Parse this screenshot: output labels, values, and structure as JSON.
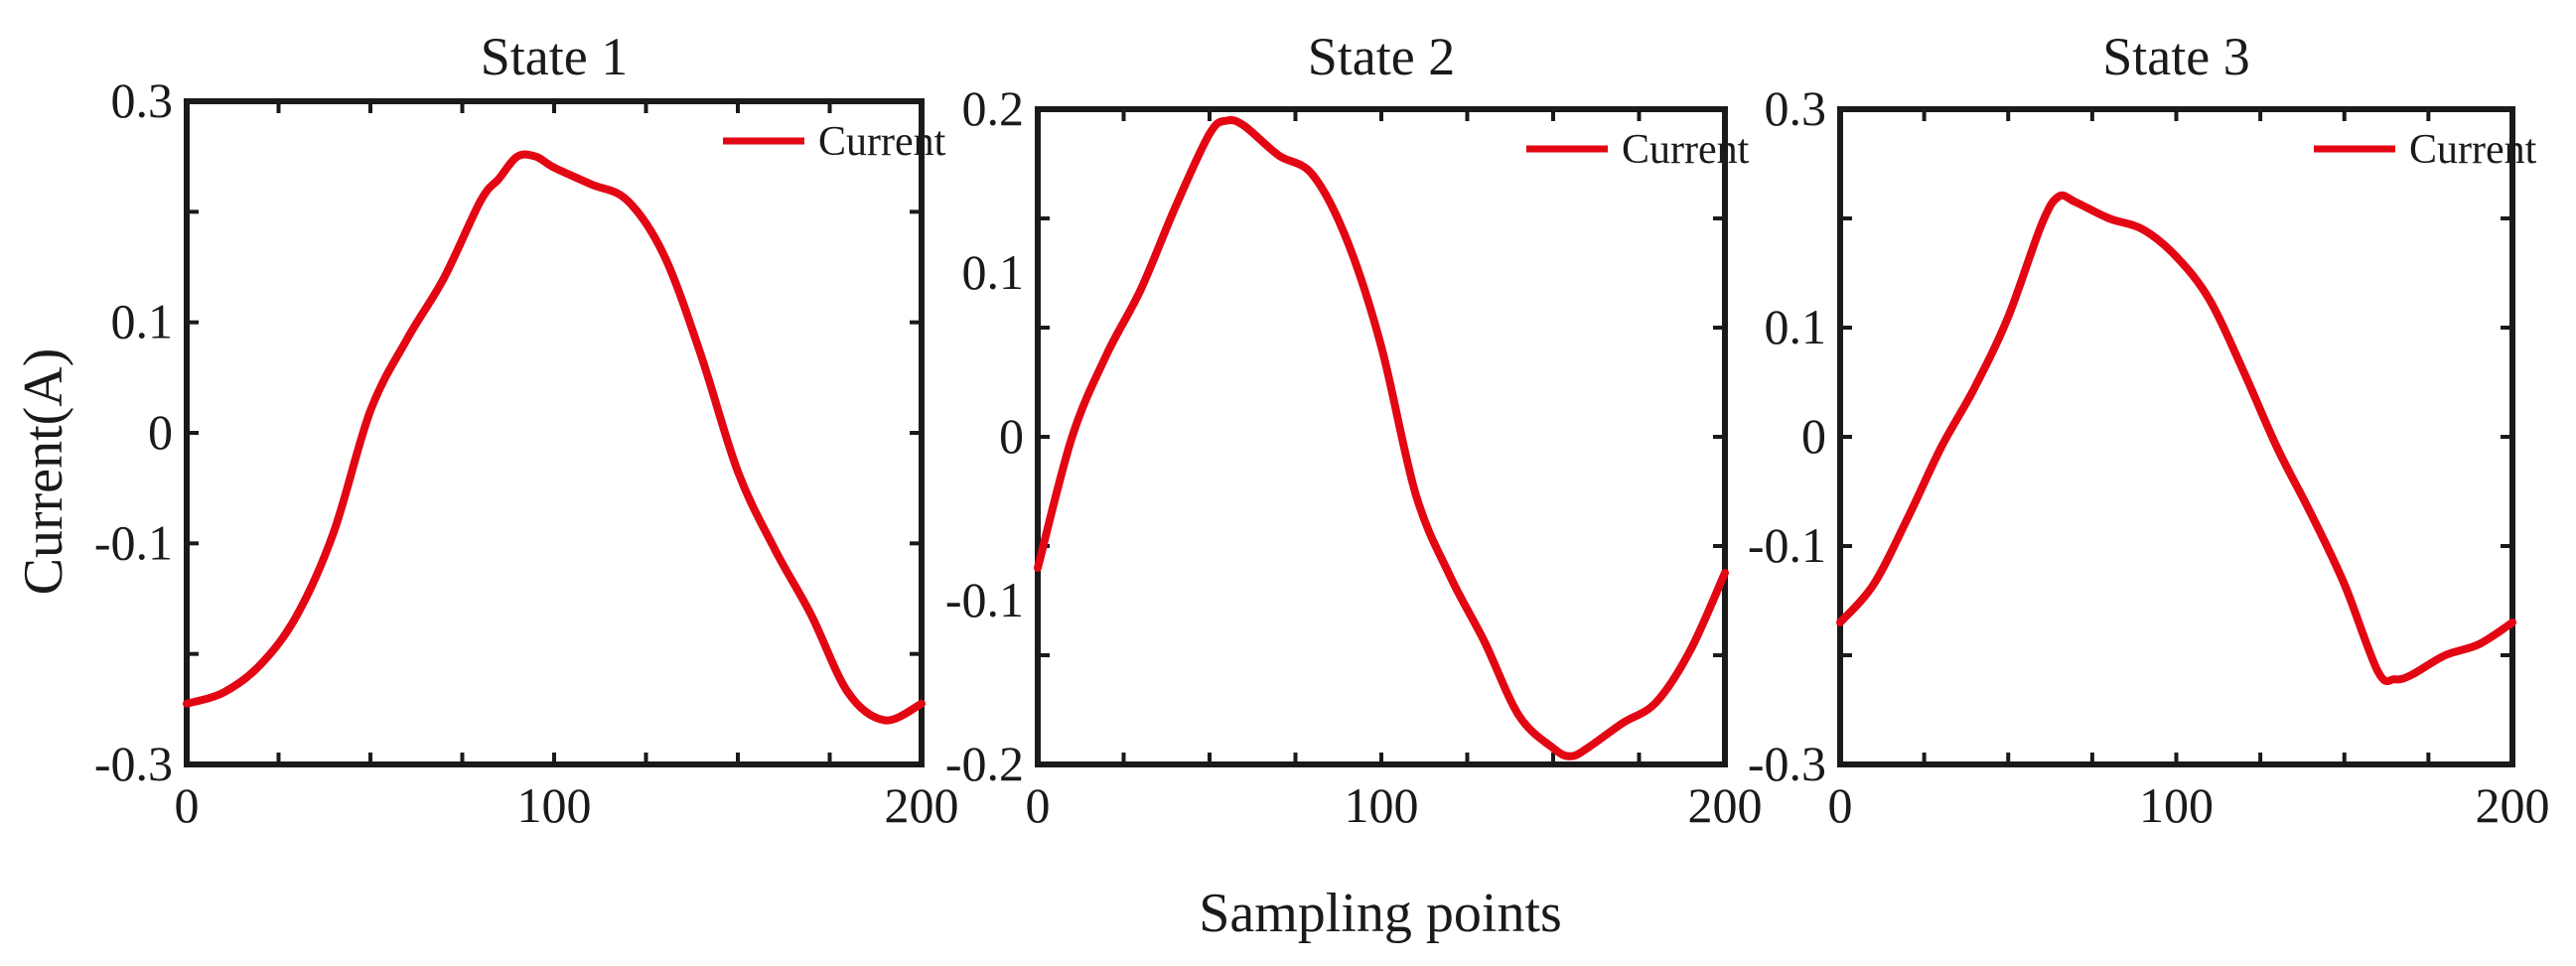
{
  "ylabel": "Current(A)",
  "xlabel": "Sampling points",
  "colors": {
    "current": "#e30613",
    "axis": "#1a1a1a"
  },
  "chart_data": [
    {
      "type": "line",
      "title": "State 1",
      "xlim": [
        0,
        200
      ],
      "ylim": [
        -0.3,
        0.3
      ],
      "yticks": [
        "0.3",
        "0.1",
        "0",
        "-0.1",
        "-0.3"
      ],
      "ytick_values": [
        0.3,
        0.1,
        0,
        -0.1,
        -0.3
      ],
      "xticks": [
        "0",
        "100",
        "200"
      ],
      "xtick_values": [
        0,
        100,
        200
      ],
      "legend": "top-right",
      "series": [
        {
          "name": "Current",
          "x": [
            0,
            10,
            20,
            30,
            40,
            50,
            60,
            70,
            80,
            85,
            90,
            95,
            100,
            110,
            120,
            130,
            140,
            150,
            160,
            170,
            180,
            190,
            200
          ],
          "values": [
            -0.245,
            -0.235,
            -0.21,
            -0.165,
            -0.09,
            0.02,
            0.085,
            0.14,
            0.21,
            0.23,
            0.25,
            0.25,
            0.24,
            0.225,
            0.21,
            0.16,
            0.07,
            -0.035,
            -0.105,
            -0.165,
            -0.235,
            -0.26,
            -0.245
          ]
        }
      ]
    },
    {
      "type": "line",
      "title": "State 2",
      "xlim": [
        0,
        200
      ],
      "ylim": [
        -0.2,
        0.2
      ],
      "yticks": [
        "0.2",
        "0.1",
        "0",
        "-0.1",
        "-0.2"
      ],
      "ytick_values": [
        0.2,
        0.1,
        0,
        -0.1,
        -0.2
      ],
      "xticks": [
        "0",
        "100",
        "200"
      ],
      "xtick_values": [
        0,
        100,
        200
      ],
      "legend": "top-right",
      "series": [
        {
          "name": "Current",
          "x": [
            0,
            10,
            20,
            30,
            40,
            50,
            55,
            60,
            70,
            80,
            90,
            100,
            110,
            120,
            130,
            140,
            150,
            155,
            160,
            170,
            180,
            190,
            200
          ],
          "values": [
            -0.08,
            0.0,
            0.05,
            0.09,
            0.14,
            0.185,
            0.193,
            0.19,
            0.172,
            0.16,
            0.12,
            0.055,
            -0.035,
            -0.085,
            -0.125,
            -0.17,
            -0.19,
            -0.195,
            -0.19,
            -0.175,
            -0.162,
            -0.13,
            -0.083
          ]
        }
      ]
    },
    {
      "type": "line",
      "title": "State 3",
      "xlim": [
        0,
        200
      ],
      "ylim": [
        -0.3,
        0.3
      ],
      "yticks": [
        "0.3",
        "0.1",
        "0",
        "-0.1",
        "-0.3"
      ],
      "ytick_values": [
        0.3,
        0.1,
        0,
        -0.1,
        -0.3
      ],
      "xticks": [
        "0",
        "100",
        "200"
      ],
      "xtick_values": [
        0,
        100,
        200
      ],
      "legend": "top-right",
      "series": [
        {
          "name": "Current",
          "x": [
            0,
            10,
            20,
            30,
            40,
            50,
            60,
            65,
            70,
            80,
            90,
            100,
            110,
            120,
            130,
            140,
            150,
            160,
            165,
            170,
            180,
            190,
            200
          ],
          "values": [
            -0.17,
            -0.135,
            -0.075,
            -0.01,
            0.045,
            0.11,
            0.195,
            0.22,
            0.215,
            0.2,
            0.19,
            0.165,
            0.125,
            0.06,
            -0.01,
            -0.07,
            -0.135,
            -0.215,
            -0.222,
            -0.218,
            -0.2,
            -0.19,
            -0.17
          ]
        }
      ]
    }
  ]
}
